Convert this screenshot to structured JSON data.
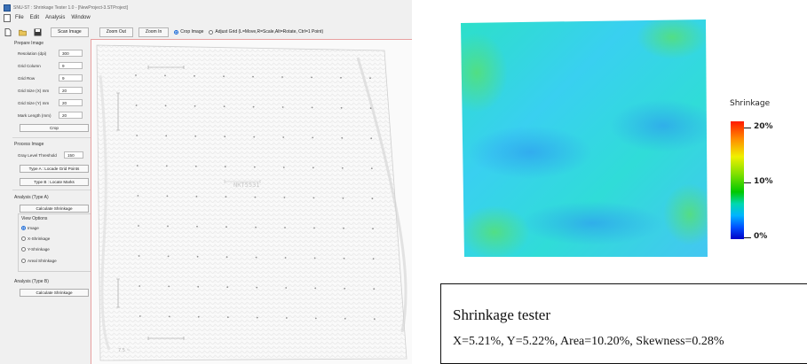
{
  "window": {
    "title": "SNU-ST : Shrinkage Tester 1.0 - [NewProject-3.STProject]",
    "menu": [
      "File",
      "Edit",
      "Analysis",
      "Window"
    ]
  },
  "toolbar": {
    "icons": [
      "new-file-icon",
      "open-folder-icon",
      "save-icon"
    ],
    "scan_image": "Scan Image",
    "zoom_out": "Zoom Out",
    "zoom_in": "Zoom In",
    "crop_image": "Crop Image",
    "adjust_grid": "Adjust Grid (L=Move,R=Scale,Alt=Rotate, Ctrl=1 Point)",
    "mode_selected": "Crop Image"
  },
  "prepare": {
    "heading": "Prepare Image",
    "fields": [
      {
        "label": "Resolution (dpi)",
        "value": "300"
      },
      {
        "label": "Grid Column",
        "value": "9"
      },
      {
        "label": "Grid Row",
        "value": "9"
      },
      {
        "label": "Grid Size (X) mm",
        "value": "20"
      },
      {
        "label": "Grid Size (Y) mm",
        "value": "20"
      },
      {
        "label": "Mark Length (mm)",
        "value": "20"
      }
    ],
    "crop_button": "Crop"
  },
  "process": {
    "heading": "Process Image",
    "threshold_label": "Gray Level Threshold",
    "threshold_value": "150",
    "type_a_button": "Type A : Locade Grid Points",
    "type_b_button": "Type B : Locate Marks"
  },
  "analysis_a": {
    "heading": "Analysis (Type A)",
    "calc_button": "Calculate Shrinkage",
    "view_heading": "View Options",
    "options": [
      "Image",
      "X-Shrinkage",
      "Y-Shrinkage",
      "Areal Shrinkage"
    ],
    "selected": "Image"
  },
  "analysis_b": {
    "heading": "Analysis (Type B)",
    "calc_button": "Calculate Shrinkage"
  },
  "scan": {
    "faint_label": "NKT5531",
    "corner_mark": "7.5 ~"
  },
  "legend": {
    "title": "Shrinkage",
    "labels": [
      "20%",
      "10%",
      "0%"
    ],
    "colors": [
      "#ff1a00",
      "#f0f000",
      "#00c800",
      "#00b4ff",
      "#0000c8"
    ]
  },
  "result": {
    "title": "Shrinkage tester",
    "line": "X=5.21%, Y=5.22%, Area=10.20%, Skewness=0.28%"
  },
  "colors": {
    "window_bg": "#f0f0f0",
    "accent_blue": "#1f6cd6",
    "image_border": "#e8a0a0",
    "heatmap_base": "#33ddd8"
  }
}
